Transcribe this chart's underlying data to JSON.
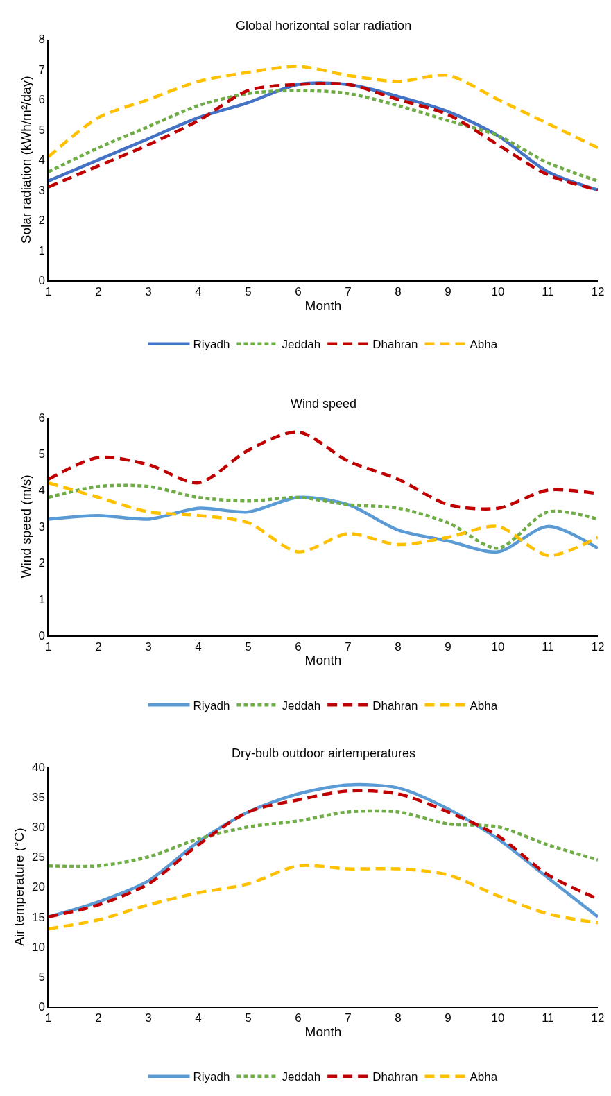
{
  "chart_data": [
    {
      "type": "line",
      "title": "Global horizontal solar radiation",
      "xlabel": "Month",
      "ylabel": "Solar radiation (kWh/m²/day)",
      "x": [
        1,
        2,
        3,
        4,
        5,
        6,
        7,
        8,
        9,
        10,
        11,
        12
      ],
      "xlim": [
        1,
        12
      ],
      "xticks": [
        1,
        2,
        3,
        4,
        5,
        6,
        7,
        8,
        9,
        10,
        11,
        12
      ],
      "ylim": [
        0,
        8
      ],
      "yticks": [
        0,
        1,
        2,
        3,
        4,
        5,
        6,
        7,
        8
      ],
      "grid": false,
      "legend": "bottom",
      "marker": "none",
      "series": [
        {
          "name": "Riyadh",
          "color": "#4472c4",
          "line_style": "solid",
          "values": [
            3.3,
            4.0,
            4.7,
            5.4,
            5.9,
            6.5,
            6.5,
            6.1,
            5.6,
            4.8,
            3.6,
            3.0
          ]
        },
        {
          "name": "Jeddah",
          "color": "#70ad47",
          "line_style": "dotted",
          "values": [
            3.6,
            4.4,
            5.1,
            5.8,
            6.2,
            6.3,
            6.2,
            5.8,
            5.3,
            4.8,
            3.9,
            3.3
          ]
        },
        {
          "name": "Dhahran",
          "color": "#c00000",
          "line_style": "dashed",
          "values": [
            3.1,
            3.8,
            4.5,
            5.3,
            6.3,
            6.5,
            6.5,
            6.0,
            5.5,
            4.5,
            3.5,
            3.0
          ]
        },
        {
          "name": "Abha",
          "color": "#ffc000",
          "line_style": "dashed",
          "values": [
            4.1,
            5.4,
            6.0,
            6.6,
            6.9,
            7.1,
            6.8,
            6.6,
            6.8,
            6.0,
            5.2,
            4.4
          ]
        }
      ]
    },
    {
      "type": "line",
      "title": "Wind speed",
      "xlabel": "Month",
      "ylabel": "Wind speed (m/s)",
      "x": [
        1,
        2,
        3,
        4,
        5,
        6,
        7,
        8,
        9,
        10,
        11,
        12
      ],
      "xlim": [
        1,
        12
      ],
      "xticks": [
        1,
        2,
        3,
        4,
        5,
        6,
        7,
        8,
        9,
        10,
        11,
        12
      ],
      "ylim": [
        0,
        6
      ],
      "yticks": [
        0,
        1,
        2,
        3,
        4,
        5,
        6
      ],
      "grid": false,
      "legend": "bottom",
      "marker": "none",
      "series": [
        {
          "name": "Riyadh",
          "color": "#5b9bd5",
          "line_style": "solid",
          "values": [
            3.2,
            3.3,
            3.2,
            3.5,
            3.4,
            3.8,
            3.6,
            2.9,
            2.6,
            2.3,
            3.0,
            2.4
          ]
        },
        {
          "name": "Jeddah",
          "color": "#70ad47",
          "line_style": "dotted",
          "values": [
            3.8,
            4.1,
            4.1,
            3.8,
            3.7,
            3.8,
            3.6,
            3.5,
            3.1,
            2.4,
            3.4,
            3.2
          ]
        },
        {
          "name": "Dhahran",
          "color": "#c00000",
          "line_style": "dashed",
          "values": [
            4.3,
            4.9,
            4.7,
            4.2,
            5.1,
            5.6,
            4.8,
            4.3,
            3.6,
            3.5,
            4.0,
            3.9
          ]
        },
        {
          "name": "Abha",
          "color": "#ffc000",
          "line_style": "dashed",
          "values": [
            4.2,
            3.8,
            3.4,
            3.3,
            3.1,
            2.3,
            2.8,
            2.5,
            2.7,
            3.0,
            2.2,
            2.7
          ]
        }
      ]
    },
    {
      "type": "line",
      "title": "Dry-bulb outdoor airtemperatures",
      "xlabel": "Month",
      "ylabel": "Air temperature (°C)",
      "x": [
        1,
        2,
        3,
        4,
        5,
        6,
        7,
        8,
        9,
        10,
        11,
        12
      ],
      "xlim": [
        1,
        12
      ],
      "xticks": [
        1,
        2,
        3,
        4,
        5,
        6,
        7,
        8,
        9,
        10,
        11,
        12
      ],
      "ylim": [
        0,
        40
      ],
      "yticks": [
        0,
        5,
        10,
        15,
        20,
        25,
        30,
        35,
        40
      ],
      "grid": false,
      "legend": "bottom",
      "marker": "none",
      "series": [
        {
          "name": "Riyadh",
          "color": "#5b9bd5",
          "line_style": "solid",
          "values": [
            15,
            17.5,
            21,
            27.5,
            32.5,
            35.5,
            37,
            36.5,
            33,
            28,
            21.5,
            15
          ]
        },
        {
          "name": "Jeddah",
          "color": "#70ad47",
          "line_style": "dotted",
          "values": [
            23.5,
            23.5,
            25,
            28,
            30,
            31,
            32.5,
            32.5,
            30.5,
            30,
            27,
            24.5
          ]
        },
        {
          "name": "Dhahran",
          "color": "#c00000",
          "line_style": "dashed",
          "values": [
            15,
            17,
            20.5,
            27,
            32.5,
            34.5,
            36,
            35.5,
            32.5,
            28.5,
            22,
            18
          ]
        },
        {
          "name": "Abha",
          "color": "#ffc000",
          "line_style": "dashed",
          "values": [
            13,
            14.5,
            17,
            19,
            20.5,
            23.5,
            23,
            23,
            22,
            18.5,
            15.5,
            14
          ]
        }
      ]
    }
  ]
}
